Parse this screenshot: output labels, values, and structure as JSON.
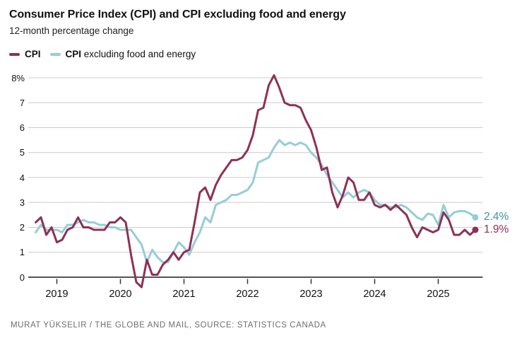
{
  "header": {
    "title": "Consumer Price Index (CPI) and CPI excluding food and energy",
    "subtitle": "12-month percentage change"
  },
  "legend": {
    "items": [
      {
        "bold": "CPI",
        "rest": ""
      },
      {
        "bold": "CPI",
        "rest": " excluding food and energy"
      }
    ]
  },
  "footer": {
    "credit": "MURAT YÜKSELIR / THE GLOBE AND MAIL, SOURCE: STATISTICS CANADA"
  },
  "colors": {
    "cpi_line": "#8d3156",
    "core_line": "#96cdd8",
    "cpi_label": "#8d3156",
    "core_label": "#3f93a3",
    "grid": "#cccccc",
    "axis": "#1a1a1a",
    "tick": "#333333",
    "text": "#111111",
    "muted_text": "#6e6e6e"
  },
  "chart_data": {
    "type": "line",
    "title": "Consumer Price Index (CPI) and CPI excluding food and energy",
    "subtitle": "12-month percentage change",
    "x_frequency": "monthly",
    "x_start": "2018-09",
    "x_end": "2025-08",
    "x_tick_labels": [
      "2019",
      "2020",
      "2021",
      "2022",
      "2023",
      "2024",
      "2025"
    ],
    "x_tick_month_indices": [
      4,
      16,
      28,
      40,
      52,
      64,
      76
    ],
    "y_tick_labels": [
      "8%",
      "7",
      "6",
      "5",
      "4",
      "3",
      "2",
      "1",
      "0"
    ],
    "y_tick_values": [
      8,
      7,
      6,
      5,
      4,
      3,
      2,
      1,
      0
    ],
    "ylim": [
      -0.6,
      8.4
    ],
    "grid": true,
    "legend_position": "top-left",
    "series": [
      {
        "name": "CPI",
        "color": "#8d3156",
        "end_label": "1.9%",
        "end_label_color": "#8d3156",
        "values": [
          2.2,
          2.4,
          1.7,
          2.0,
          1.4,
          1.5,
          1.9,
          2.0,
          2.4,
          2.0,
          2.0,
          1.9,
          1.9,
          1.9,
          2.2,
          2.2,
          2.4,
          2.2,
          0.9,
          -0.2,
          -0.4,
          0.7,
          0.1,
          0.1,
          0.5,
          0.7,
          1.0,
          0.7,
          1.0,
          1.1,
          2.2,
          3.4,
          3.6,
          3.1,
          3.7,
          4.1,
          4.4,
          4.7,
          4.7,
          4.8,
          5.1,
          5.7,
          6.7,
          6.8,
          7.7,
          8.1,
          7.6,
          7.0,
          6.9,
          6.9,
          6.8,
          6.3,
          5.9,
          5.2,
          4.3,
          4.4,
          3.4,
          2.8,
          3.3,
          4.0,
          3.8,
          3.1,
          3.1,
          3.4,
          2.9,
          2.8,
          2.9,
          2.7,
          2.9,
          2.7,
          2.5,
          2.0,
          1.6,
          2.0,
          1.9,
          1.8,
          1.9,
          2.6,
          2.3,
          1.7,
          1.7,
          1.9,
          1.7,
          1.9
        ]
      },
      {
        "name": "CPI excluding food and energy",
        "color": "#96cdd8",
        "end_label": "2.4%",
        "end_label_color": "#3f93a3",
        "values": [
          1.8,
          2.1,
          1.9,
          1.9,
          1.9,
          1.8,
          2.1,
          2.1,
          2.2,
          2.3,
          2.2,
          2.2,
          2.1,
          2.1,
          2.0,
          2.0,
          1.9,
          1.9,
          1.9,
          1.6,
          1.3,
          0.6,
          1.1,
          0.8,
          0.6,
          0.6,
          1.0,
          1.4,
          1.2,
          0.9,
          1.4,
          1.8,
          2.4,
          2.2,
          2.9,
          3.0,
          3.1,
          3.3,
          3.3,
          3.4,
          3.5,
          3.8,
          4.6,
          4.7,
          4.8,
          5.2,
          5.5,
          5.3,
          5.4,
          5.3,
          5.4,
          5.3,
          5.0,
          4.8,
          4.5,
          4.1,
          3.8,
          3.5,
          3.2,
          3.4,
          3.2,
          3.4,
          3.5,
          3.4,
          3.1,
          2.9,
          2.9,
          2.8,
          2.8,
          2.9,
          2.8,
          2.6,
          2.4,
          2.3,
          2.55,
          2.5,
          2.1,
          2.9,
          2.4,
          2.6,
          2.65,
          2.65,
          2.55,
          2.4
        ]
      }
    ]
  }
}
